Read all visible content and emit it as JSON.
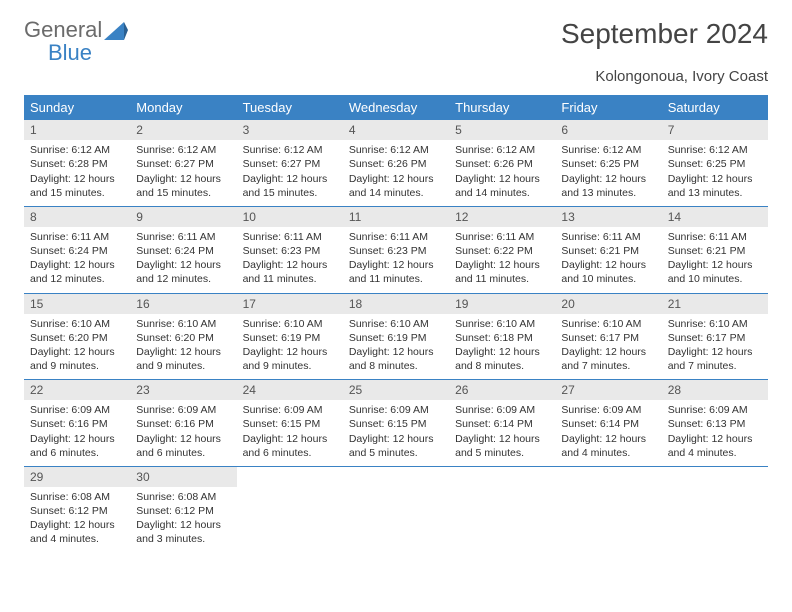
{
  "brand": {
    "word1": "General",
    "word2": "Blue",
    "accent_color": "#3a82c4"
  },
  "title": "September 2024",
  "location": "Kolongonoua, Ivory Coast",
  "colors": {
    "header_bg": "#3a82c4",
    "header_text": "#ffffff",
    "daynum_bg": "#e9e9e9",
    "text": "#333333",
    "rule": "#3a82c4"
  },
  "day_names": [
    "Sunday",
    "Monday",
    "Tuesday",
    "Wednesday",
    "Thursday",
    "Friday",
    "Saturday"
  ],
  "weeks": [
    [
      {
        "n": "1",
        "sr": "6:12 AM",
        "ss": "6:28 PM",
        "dl": "12 hours and 15 minutes."
      },
      {
        "n": "2",
        "sr": "6:12 AM",
        "ss": "6:27 PM",
        "dl": "12 hours and 15 minutes."
      },
      {
        "n": "3",
        "sr": "6:12 AM",
        "ss": "6:27 PM",
        "dl": "12 hours and 15 minutes."
      },
      {
        "n": "4",
        "sr": "6:12 AM",
        "ss": "6:26 PM",
        "dl": "12 hours and 14 minutes."
      },
      {
        "n": "5",
        "sr": "6:12 AM",
        "ss": "6:26 PM",
        "dl": "12 hours and 14 minutes."
      },
      {
        "n": "6",
        "sr": "6:12 AM",
        "ss": "6:25 PM",
        "dl": "12 hours and 13 minutes."
      },
      {
        "n": "7",
        "sr": "6:12 AM",
        "ss": "6:25 PM",
        "dl": "12 hours and 13 minutes."
      }
    ],
    [
      {
        "n": "8",
        "sr": "6:11 AM",
        "ss": "6:24 PM",
        "dl": "12 hours and 12 minutes."
      },
      {
        "n": "9",
        "sr": "6:11 AM",
        "ss": "6:24 PM",
        "dl": "12 hours and 12 minutes."
      },
      {
        "n": "10",
        "sr": "6:11 AM",
        "ss": "6:23 PM",
        "dl": "12 hours and 11 minutes."
      },
      {
        "n": "11",
        "sr": "6:11 AM",
        "ss": "6:23 PM",
        "dl": "12 hours and 11 minutes."
      },
      {
        "n": "12",
        "sr": "6:11 AM",
        "ss": "6:22 PM",
        "dl": "12 hours and 11 minutes."
      },
      {
        "n": "13",
        "sr": "6:11 AM",
        "ss": "6:21 PM",
        "dl": "12 hours and 10 minutes."
      },
      {
        "n": "14",
        "sr": "6:11 AM",
        "ss": "6:21 PM",
        "dl": "12 hours and 10 minutes."
      }
    ],
    [
      {
        "n": "15",
        "sr": "6:10 AM",
        "ss": "6:20 PM",
        "dl": "12 hours and 9 minutes."
      },
      {
        "n": "16",
        "sr": "6:10 AM",
        "ss": "6:20 PM",
        "dl": "12 hours and 9 minutes."
      },
      {
        "n": "17",
        "sr": "6:10 AM",
        "ss": "6:19 PM",
        "dl": "12 hours and 9 minutes."
      },
      {
        "n": "18",
        "sr": "6:10 AM",
        "ss": "6:19 PM",
        "dl": "12 hours and 8 minutes."
      },
      {
        "n": "19",
        "sr": "6:10 AM",
        "ss": "6:18 PM",
        "dl": "12 hours and 8 minutes."
      },
      {
        "n": "20",
        "sr": "6:10 AM",
        "ss": "6:17 PM",
        "dl": "12 hours and 7 minutes."
      },
      {
        "n": "21",
        "sr": "6:10 AM",
        "ss": "6:17 PM",
        "dl": "12 hours and 7 minutes."
      }
    ],
    [
      {
        "n": "22",
        "sr": "6:09 AM",
        "ss": "6:16 PM",
        "dl": "12 hours and 6 minutes."
      },
      {
        "n": "23",
        "sr": "6:09 AM",
        "ss": "6:16 PM",
        "dl": "12 hours and 6 minutes."
      },
      {
        "n": "24",
        "sr": "6:09 AM",
        "ss": "6:15 PM",
        "dl": "12 hours and 6 minutes."
      },
      {
        "n": "25",
        "sr": "6:09 AM",
        "ss": "6:15 PM",
        "dl": "12 hours and 5 minutes."
      },
      {
        "n": "26",
        "sr": "6:09 AM",
        "ss": "6:14 PM",
        "dl": "12 hours and 5 minutes."
      },
      {
        "n": "27",
        "sr": "6:09 AM",
        "ss": "6:14 PM",
        "dl": "12 hours and 4 minutes."
      },
      {
        "n": "28",
        "sr": "6:09 AM",
        "ss": "6:13 PM",
        "dl": "12 hours and 4 minutes."
      }
    ],
    [
      {
        "n": "29",
        "sr": "6:08 AM",
        "ss": "6:12 PM",
        "dl": "12 hours and 4 minutes."
      },
      {
        "n": "30",
        "sr": "6:08 AM",
        "ss": "6:12 PM",
        "dl": "12 hours and 3 minutes."
      },
      null,
      null,
      null,
      null,
      null
    ]
  ],
  "labels": {
    "sunrise": "Sunrise:",
    "sunset": "Sunset:",
    "daylight": "Daylight:"
  }
}
